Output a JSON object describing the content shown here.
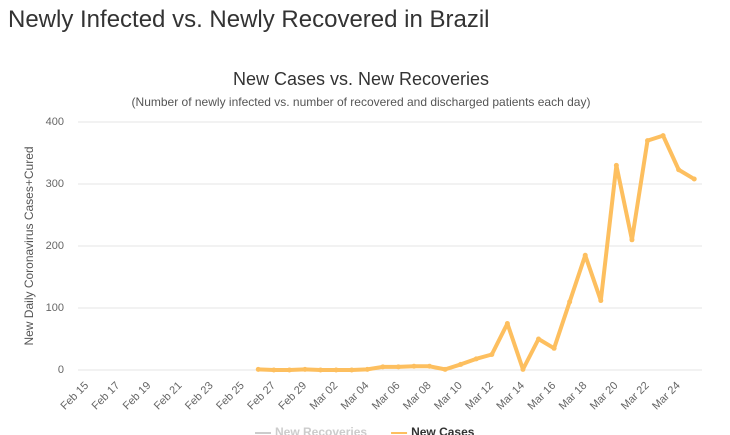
{
  "page_title": "Newly Infected vs. Newly Recovered in Brazil",
  "chart_data": {
    "type": "line",
    "title": "New Cases vs. New Recoveries",
    "subtitle": "(Number of newly infected vs. number of recovered and discharged patients each day)",
    "y_label": "New Daily Coronavirus Cases+Cured",
    "categories": [
      "Feb 15",
      null,
      "Feb 17",
      null,
      "Feb 19",
      null,
      "Feb 21",
      null,
      "Feb 23",
      null,
      "Feb 25",
      null,
      "Feb 27",
      null,
      "Feb 29",
      null,
      "Mar 02",
      null,
      "Mar 04",
      null,
      "Mar 06",
      null,
      "Mar 08",
      null,
      "Mar 10",
      null,
      "Mar 12",
      null,
      "Mar 14",
      null,
      "Mar 16",
      null,
      "Mar 18",
      null,
      "Mar 20",
      null,
      "Mar 22",
      null,
      "Mar 24",
      null
    ],
    "series": [
      {
        "name": "New Recoveries",
        "color": "#cccccc",
        "visible": false,
        "values": [
          null,
          null,
          null,
          null,
          null,
          null,
          null,
          null,
          null,
          null,
          null,
          null,
          null,
          null,
          null,
          null,
          null,
          null,
          null,
          null,
          null,
          null,
          null,
          null,
          null,
          null,
          null,
          null,
          null,
          null,
          null,
          null,
          null,
          null,
          null,
          null,
          null,
          null,
          null,
          null
        ]
      },
      {
        "name": "New Cases",
        "color": "#fdbf5f",
        "visible": true,
        "values": [
          null,
          null,
          null,
          null,
          null,
          null,
          null,
          null,
          null,
          null,
          null,
          1,
          0,
          0,
          1,
          0,
          0,
          0,
          1,
          5,
          5,
          6,
          6,
          1,
          9,
          18,
          25,
          75,
          1,
          50,
          35,
          110,
          185,
          112,
          330,
          210,
          370,
          378,
          323,
          308
        ]
      }
    ],
    "ylim": [
      0,
      400
    ],
    "yticks": [
      0,
      100,
      200,
      300,
      400
    ],
    "grid": true
  }
}
